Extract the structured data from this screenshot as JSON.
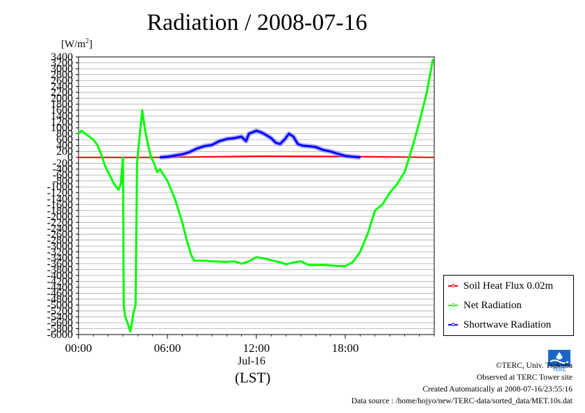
{
  "chart_data": {
    "type": "line",
    "title": "Radiation / 2008-07-16",
    "unit_base": "[W/m",
    "unit_exp": "2",
    "unit_close": "]",
    "xlabel": "Jul-16",
    "xunit": "(LST)",
    "xlim": [
      0,
      24
    ],
    "x_ticks": [
      0,
      6,
      12,
      18
    ],
    "x_tick_labels": [
      "00:00",
      "06:00",
      "12:00",
      "18:00"
    ],
    "ylim": [
      -6000,
      3400
    ],
    "y_tick_labels": [
      "3400",
      "3200",
      "3000",
      "2800",
      "2600",
      "2400",
      "2200",
      "2000",
      "1800",
      "1600",
      "1400",
      "1200",
      "1000",
      "800",
      "600",
      "400",
      "200",
      "0",
      "-200",
      "-400",
      "-600",
      "-800",
      "-1000",
      "-1200",
      "-1400",
      "-1600",
      "-1800",
      "-2000",
      "-2200",
      "-2400",
      "-2600",
      "-2800",
      "-3000",
      "-3200",
      "-3400",
      "-3600",
      "-3800",
      "-4000",
      "-4200",
      "-4400",
      "-4600",
      "-4800",
      "-5000",
      "-5200",
      "-5400",
      "-5600",
      "-5800",
      "-6000"
    ],
    "grid": true,
    "legend": "lower-right outside",
    "series": [
      {
        "name": "Soil Heat Flux 0.02m",
        "color": "#ff0000",
        "x": [
          0,
          6,
          12,
          18,
          23.9
        ],
        "y": [
          0,
          0,
          40,
          30,
          0
        ]
      },
      {
        "name": "Net Radiation",
        "color": "#00ff00",
        "x": [
          0,
          0.2,
          1.0,
          1.3,
          1.6,
          1.8,
          2.1,
          2.4,
          2.7,
          2.85,
          2.95,
          3.0,
          3.05,
          3.15,
          3.3,
          3.5,
          3.7,
          3.85,
          3.95,
          4.1,
          4.3,
          4.5,
          4.7,
          4.9,
          5.1,
          5.3,
          5.5,
          6.0,
          6.5,
          7.0,
          7.3,
          7.6,
          7.8,
          8.2,
          8.6,
          9.0,
          9.5,
          10.0,
          10.5,
          11.0,
          11.5,
          12.0,
          12.5,
          13.0,
          13.5,
          14.0,
          14.5,
          15.0,
          15.5,
          16.0,
          16.5,
          17.0,
          17.5,
          18.0,
          18.5,
          19.0,
          19.5,
          20.0,
          20.5,
          21.0,
          21.5,
          22.0,
          22.5,
          23.0,
          23.5,
          23.9
        ],
        "y": [
          800,
          900,
          600,
          400,
          0,
          -300,
          -600,
          -900,
          -1100,
          -900,
          -300,
          0,
          -5000,
          -5400,
          -5600,
          -5900,
          -5300,
          -5000,
          -200,
          600,
          1600,
          900,
          400,
          0,
          -200,
          -500,
          -400,
          -800,
          -1400,
          -2200,
          -2800,
          -3300,
          -3500,
          -3500,
          -3500,
          -3520,
          -3530,
          -3540,
          -3520,
          -3600,
          -3520,
          -3380,
          -3420,
          -3480,
          -3540,
          -3620,
          -3560,
          -3520,
          -3640,
          -3650,
          -3640,
          -3660,
          -3680,
          -3680,
          -3550,
          -3200,
          -2600,
          -1800,
          -1600,
          -1200,
          -900,
          -500,
          300,
          1200,
          2200,
          3300
        ]
      },
      {
        "name": "Shortwave Radiation",
        "color": "#0000ff",
        "x": [
          5.5,
          6.0,
          6.5,
          7.0,
          7.5,
          8.0,
          8.5,
          9.0,
          9.5,
          10.0,
          10.5,
          11.0,
          11.3,
          11.5,
          12.0,
          12.3,
          12.5,
          13.0,
          13.3,
          13.6,
          13.9,
          14.2,
          14.5,
          14.8,
          15.1,
          15.5,
          16.0,
          16.5,
          17.0,
          17.5,
          18.0,
          18.5,
          19.0
        ],
        "y": [
          0,
          20,
          60,
          100,
          180,
          300,
          380,
          420,
          550,
          620,
          650,
          700,
          550,
          800,
          900,
          850,
          800,
          650,
          500,
          450,
          600,
          800,
          700,
          450,
          400,
          380,
          350,
          250,
          200,
          120,
          50,
          20,
          0
        ]
      }
    ]
  },
  "legend_items": [
    {
      "label": "Soil Heat Flux 0.02m",
      "color": "#ff0000"
    },
    {
      "label": "Net Radiation",
      "color": "#00ff00"
    },
    {
      "label": "Shortwave Radiation",
      "color": "#0000ff"
    }
  ],
  "credits": {
    "copyright": "©TERC, Univ. Tsukuba",
    "site": "Observed at TERC Tower site",
    "created": "Created Automatically at 2008-07-16/23:55:16",
    "source": "Data source : /home/hojyo/new/TERC-data/sorted_data/MET.10s.dat"
  },
  "logo_text": "TERC"
}
